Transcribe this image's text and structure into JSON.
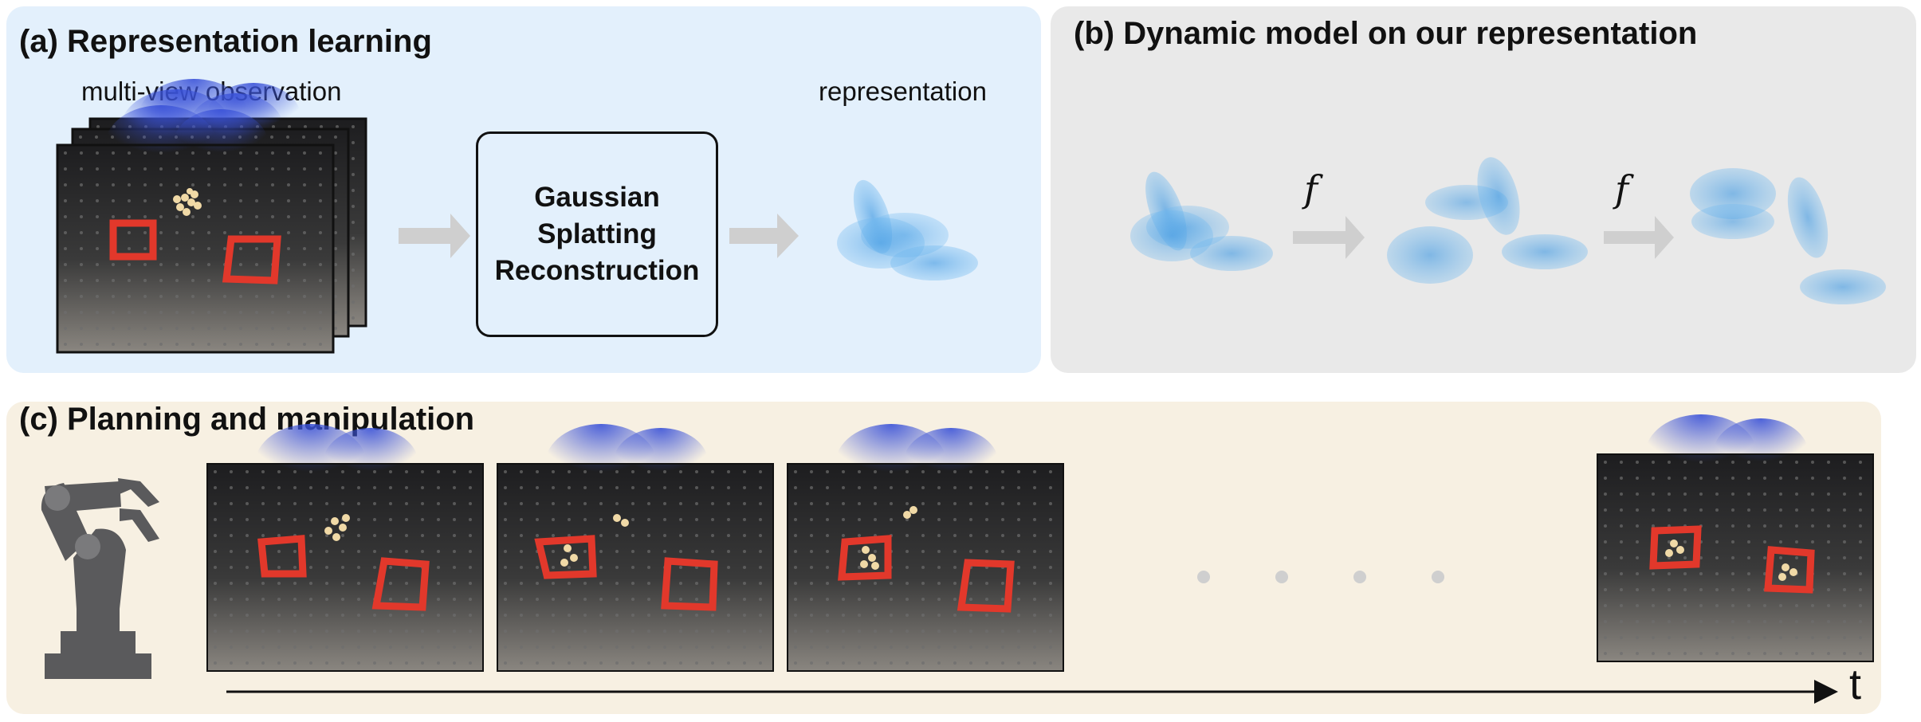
{
  "panels": {
    "a": {
      "title": "(a) Representation learning",
      "input_label": "multi-view observation",
      "process_label": "Gaussian Splatting Reconstruction",
      "process_lines": [
        "Gaussian",
        "Splatting",
        "Reconstruction"
      ],
      "output_label": "representation"
    },
    "b": {
      "title": "(b) Dynamic model on our representation",
      "function_symbol": "f"
    },
    "c": {
      "title": "(c) Planning and manipulation",
      "time_axis_label": "t"
    }
  },
  "colors": {
    "panel_a_bg": "#e3f0fc",
    "panel_b_bg": "#e9e9e9",
    "panel_c_bg": "#f7f0e2",
    "arrow_gray": "#cfcfcf",
    "gaussian_blue": "#4ea4e6",
    "robot_gray": "#5a5a5c",
    "table_dark": "#2b2b2b",
    "square_red": "#e2382b"
  },
  "icons": [
    "robot-arm-icon",
    "ellipsis-dots"
  ]
}
